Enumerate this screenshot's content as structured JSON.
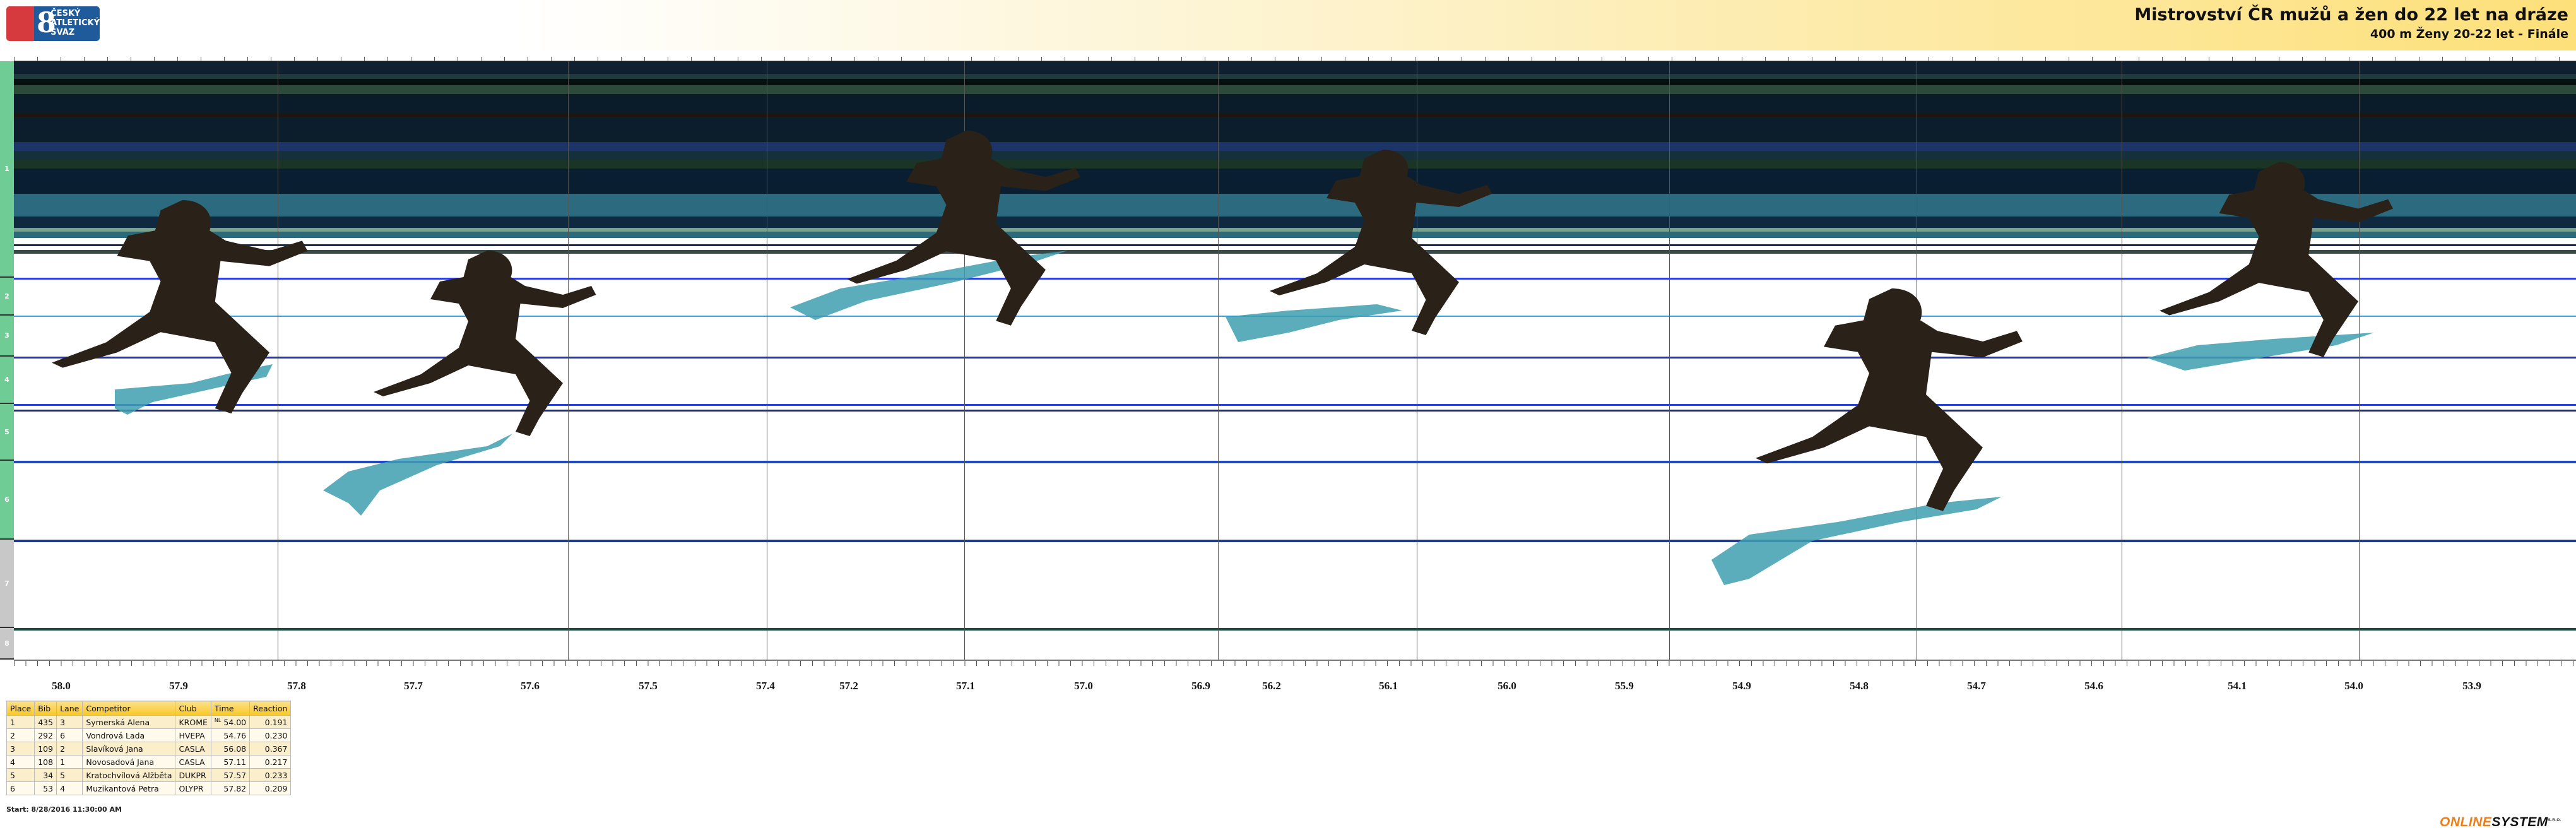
{
  "header": {
    "logo_text": "ČESKÝ ATLETICKÝ SVAZ",
    "title": "Mistrovství ČR mužů a žen do 22 let na dráze",
    "subtitle": "400 m Ženy 20-22 let - Finále"
  },
  "lanes": [
    "1",
    "2",
    "3",
    "4",
    "5",
    "6",
    "7",
    "8"
  ],
  "lane_colors": {
    "active": "#6fcc94",
    "inactive": "#c8c8c8"
  },
  "time_axis": [
    "58.0",
    "57.9",
    "57.8",
    "57.7",
    "57.6",
    "57.5",
    "57.4",
    "57.2",
    "57.1",
    "57.0",
    "56.9",
    "56.2",
    "56.1",
    "56.0",
    "55.9",
    "54.9",
    "54.8",
    "54.7",
    "54.6",
    "54.1",
    "54.0",
    "53.9"
  ],
  "results": {
    "columns": [
      "Place",
      "Bib",
      "Lane",
      "Competitor",
      "Club",
      "Time",
      "Reaction"
    ],
    "rows": [
      {
        "place": "1",
        "bib": "435",
        "lane": "3",
        "competitor": "Symerská Alena",
        "club": "KROME",
        "note": "NL",
        "time": "54.00",
        "reaction": "0.191"
      },
      {
        "place": "2",
        "bib": "292",
        "lane": "6",
        "competitor": "Vondrová Lada",
        "club": "HVEPA",
        "note": "",
        "time": "54.76",
        "reaction": "0.230"
      },
      {
        "place": "3",
        "bib": "109",
        "lane": "2",
        "competitor": "Slavíková Jana",
        "club": "CASLA",
        "note": "",
        "time": "56.08",
        "reaction": "0.367"
      },
      {
        "place": "4",
        "bib": "108",
        "lane": "1",
        "competitor": "Novosadová Jana",
        "club": "CASLA",
        "note": "",
        "time": "57.11",
        "reaction": "0.217"
      },
      {
        "place": "5",
        "bib": "34",
        "lane": "5",
        "competitor": "Kratochvílová Alžběta",
        "club": "DUKPR",
        "note": "",
        "time": "57.57",
        "reaction": "0.233"
      },
      {
        "place": "6",
        "bib": "53",
        "lane": "4",
        "competitor": "Muzikantová Petra",
        "club": "OLYPR",
        "note": "",
        "time": "57.82",
        "reaction": "0.209"
      }
    ]
  },
  "start_text": "Start: 8/28/2016 11:30:00 AM",
  "footer_logo": {
    "part1": "ONLINE",
    "part2": "SYSTEM",
    "suffix": "S.R.O."
  }
}
